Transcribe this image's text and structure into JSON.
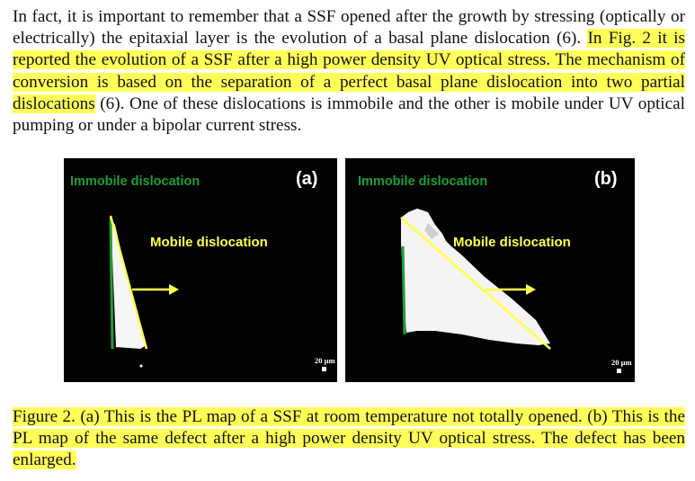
{
  "paragraph": {
    "plain_1": "In fact, it is important to remember that a SSF opened after the growth by stressing (optically or electrically) the epitaxial layer is the evolution of a basal plane dislocation (6). ",
    "highlight_1": "In Fig. 2 it is reported the evolution of a SSF after a high power density UV optical stress. The mechanism of conversion is based on the separation of a perfect basal plane dislocation into two partial dislocations",
    "plain_2": " (6). One of these dislocations is immobile and the other is mobile under UV optical pumping or under a bipolar current stress."
  },
  "figure": {
    "panel_a": {
      "letter": "(a)",
      "immobile_label": "Immobile dislocation",
      "mobile_label": "Mobile dislocation",
      "scale_label": "20 µm"
    },
    "panel_b": {
      "letter": "(b)",
      "immobile_label": "Immobile dislocation",
      "mobile_label": "Mobile dislocation",
      "scale_label": "20 µm"
    },
    "colors": {
      "immobile": "#1f9e3a",
      "mobile": "#ffff4a",
      "highlight": "#ffff58"
    }
  },
  "caption": {
    "text": "Figure 2.  (a) This is the PL map of a SSF at room temperature not totally opened. (b) This is the PL map of the same defect after a high power density UV optical stress. The defect has been enlarged."
  }
}
